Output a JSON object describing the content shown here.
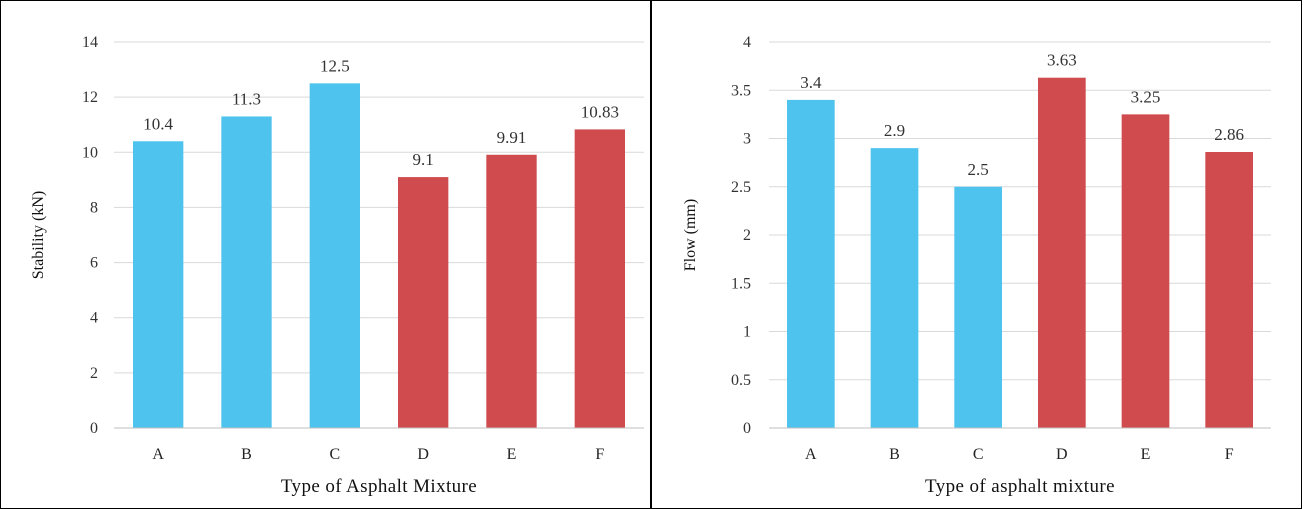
{
  "colors": {
    "series_blue": "#4EC3EE",
    "series_red": "#CF4B4E",
    "grid": "#D9D9D9",
    "axis": "#BFBFBF"
  },
  "chart_data": [
    {
      "type": "bar",
      "categories": [
        "A",
        "B",
        "C",
        "D",
        "E",
        "F"
      ],
      "values": [
        10.4,
        11.3,
        12.5,
        9.1,
        9.91,
        10.83
      ],
      "data_labels": [
        "10.4",
        "11.3",
        "12.5",
        "9.1",
        "9.91",
        "10.83"
      ],
      "bar_colors": [
        "#4EC3EE",
        "#4EC3EE",
        "#4EC3EE",
        "#CF4B4E",
        "#CF4B4E",
        "#CF4B4E"
      ],
      "xlabel": "Type of Asphalt Mixture",
      "ylabel": "Stability (kN)",
      "ylim": [
        0,
        14
      ],
      "yticks": [
        0,
        2,
        4,
        6,
        8,
        10,
        12,
        14
      ],
      "ytick_labels": [
        "0",
        "2",
        "4",
        "6",
        "8",
        "10",
        "12",
        "14"
      ],
      "grid": true,
      "legend": "none"
    },
    {
      "type": "bar",
      "categories": [
        "A",
        "B",
        "C",
        "D",
        "E",
        "F"
      ],
      "values": [
        3.4,
        2.9,
        2.5,
        3.63,
        3.25,
        2.86
      ],
      "data_labels": [
        "3.4",
        "2.9",
        "2.5",
        "3.63",
        "3.25",
        "2.86"
      ],
      "bar_colors": [
        "#4EC3EE",
        "#4EC3EE",
        "#4EC3EE",
        "#CF4B4E",
        "#CF4B4E",
        "#CF4B4E"
      ],
      "xlabel": "Type of asphalt mixture",
      "ylabel": "Flow (mm)",
      "ylim": [
        0,
        4
      ],
      "yticks": [
        0,
        0.5,
        1,
        1.5,
        2,
        2.5,
        3,
        3.5,
        4
      ],
      "ytick_labels": [
        "0",
        "0.5",
        "1",
        "1.5",
        "2",
        "2.5",
        "3",
        "3.5",
        "4"
      ],
      "grid": true,
      "legend": "none"
    }
  ]
}
